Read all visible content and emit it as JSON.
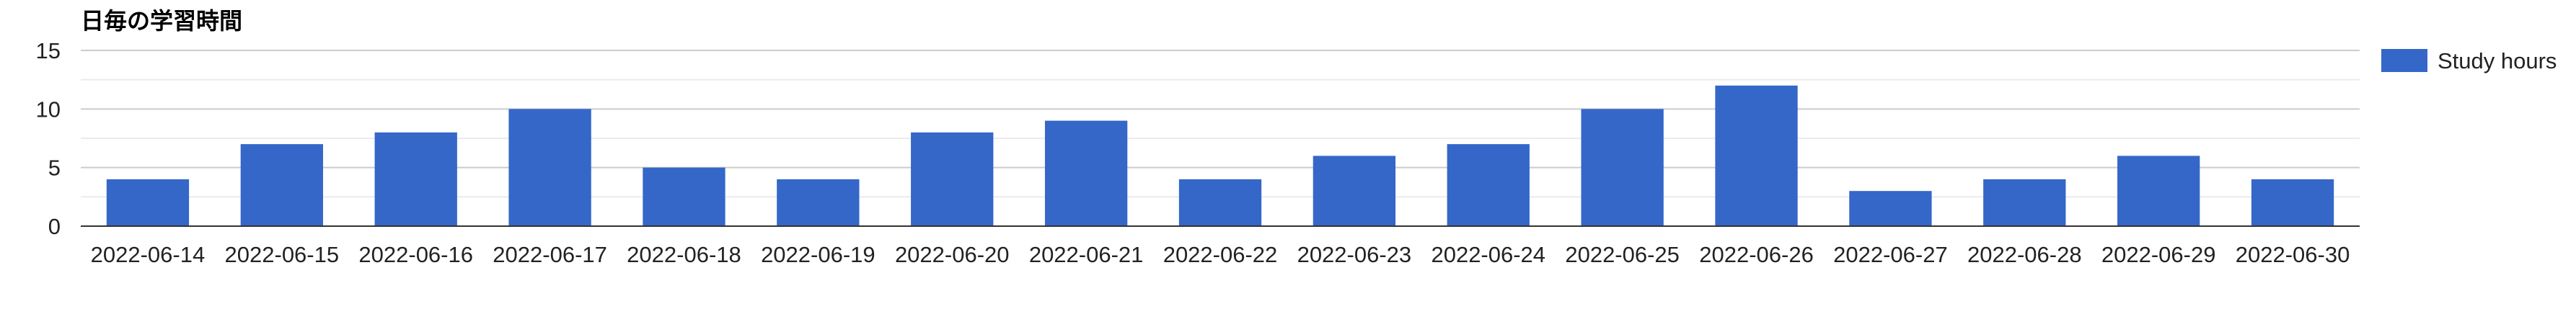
{
  "chart_data": {
    "type": "bar",
    "title": "日毎の学習時間",
    "xlabel": "",
    "ylabel": "",
    "categories": [
      "2022-06-14",
      "2022-06-15",
      "2022-06-16",
      "2022-06-17",
      "2022-06-18",
      "2022-06-19",
      "2022-06-20",
      "2022-06-21",
      "2022-06-22",
      "2022-06-23",
      "2022-06-24",
      "2022-06-25",
      "2022-06-26",
      "2022-06-27",
      "2022-06-28",
      "2022-06-29",
      "2022-06-30"
    ],
    "series": [
      {
        "name": "Study hours",
        "color": "#3467c8",
        "values": [
          4,
          7,
          8,
          10,
          5,
          4,
          8,
          9,
          4,
          6,
          7,
          10,
          12,
          3,
          4,
          6,
          4
        ]
      }
    ],
    "ylim": [
      0,
      15
    ],
    "yticks": [
      0,
      5,
      10,
      15
    ],
    "grid": true,
    "legend_position": "right"
  }
}
